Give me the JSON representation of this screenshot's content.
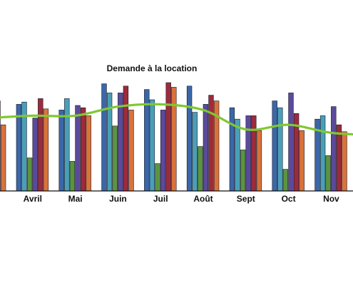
{
  "chart_data": {
    "type": "bar",
    "title": "Demande à la location",
    "categories": [
      null,
      "Avril",
      "Mai",
      "Juin",
      "Juil",
      "Août",
      "Sept",
      "Oct",
      "Nov",
      null
    ],
    "ylim": [
      0,
      100
    ],
    "series": [
      {
        "color": "#3b67a8",
        "values": [
          null,
          76,
          71,
          94,
          89,
          92,
          73,
          79,
          63,
          null
        ]
      },
      {
        "color": "#4a9fb8",
        "values": [
          null,
          78,
          81,
          86,
          80,
          69,
          63,
          73,
          66,
          null
        ]
      },
      {
        "color": "#5a9440",
        "values": [
          null,
          29,
          26,
          57,
          24,
          39,
          36,
          19,
          31,
          null
        ]
      },
      {
        "color": "#5b4a9b",
        "values": [
          null,
          64,
          75,
          86,
          71,
          76,
          66,
          86,
          74,
          null
        ]
      },
      {
        "color": "#9c2b3c",
        "values": [
          79,
          81,
          73,
          92,
          95,
          84,
          66,
          68,
          58,
          null
        ]
      },
      {
        "color": "#d9733a",
        "values": [
          58,
          72,
          66,
          71,
          91,
          79,
          53,
          53,
          52,
          null
        ]
      },
      {
        "type": "line",
        "color": "#7fc832",
        "values": [
          64,
          66,
          66,
          74,
          76,
          71,
          54,
          58,
          51,
          49
        ]
      }
    ]
  }
}
